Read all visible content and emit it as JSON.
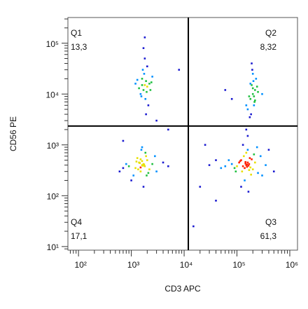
{
  "chart_data": {
    "type": "scatter",
    "x_label": "CD3 APC",
    "y_label": "CD56 PE",
    "log_x": true,
    "log_y": true,
    "xlim": [
      63,
      1400000
    ],
    "ylim": [
      8.5,
      320000
    ],
    "xticks": [
      {
        "value": 100,
        "label": "10²"
      },
      {
        "value": 1000,
        "label": "10³"
      },
      {
        "value": 10000,
        "label": "10⁴"
      },
      {
        "value": 100000,
        "label": "10⁵"
      },
      {
        "value": 1000000,
        "label": "10⁶"
      }
    ],
    "yticks": [
      {
        "value": 10,
        "label": "10¹"
      },
      {
        "value": 100,
        "label": "10²"
      },
      {
        "value": 1000,
        "label": "10³"
      },
      {
        "value": 10000,
        "label": "10⁴"
      },
      {
        "value": 100000,
        "label": "10⁵"
      }
    ],
    "minor_ticks": true,
    "gate_x": 12000,
    "gate_y": 2350,
    "density_colors": [
      "#1a1ad0",
      "#0090ff",
      "#20c040",
      "#e8e000",
      "#ff2000"
    ],
    "quadrants": {
      "names": [
        "Q1",
        "Q2",
        "Q3",
        "Q4"
      ],
      "values": [
        13.3,
        8.32,
        61.3,
        17.1
      ],
      "value_labels": [
        "13,3",
        "8,32",
        "61,3",
        "17,1"
      ]
    },
    "x": [
      1600,
      1400,
      1800,
      2000,
      1200,
      1500,
      1700,
      1900,
      2200,
      1300,
      1100,
      2500,
      900,
      3000,
      1600,
      1500,
      1750,
      1450,
      1650,
      1850,
      700,
      4000,
      1000,
      2800,
      1550,
      1350,
      2100,
      1250,
      1950,
      800,
      5000,
      1600,
      1700,
      1500,
      600,
      1800,
      1700,
      1900,
      2000,
      1600,
      1500,
      2200,
      1750,
      1850,
      1400,
      2400,
      1300,
      1950,
      1650,
      2100,
      1800,
      1700,
      2500,
      1550,
      1900,
      1800,
      2000,
      1600,
      2300,
      1200,
      150000,
      130000,
      170000,
      160000,
      140000,
      120000,
      180000,
      200000,
      110000,
      155000,
      145000,
      165000,
      125000,
      190000,
      135000,
      100000,
      220000,
      250000,
      90000,
      80000,
      300000,
      60000,
      150000,
      140000,
      160000,
      175000,
      115000,
      185000,
      70000,
      350000,
      130000,
      170000,
      145000,
      155000,
      95000,
      210000,
      50000,
      240000,
      120000,
      160000,
      40000,
      30000,
      280000,
      150000,
      165000,
      200000,
      180000,
      220000,
      190000,
      210000,
      170000,
      230000,
      160000,
      200000,
      250000,
      185000,
      215000,
      195000,
      60000,
      80000,
      175000,
      205000,
      240000,
      190000,
      210000,
      150000,
      300000,
      200000,
      180000,
      220000,
      20000,
      400000,
      5000,
      700,
      3000,
      15000,
      500000,
      8000,
      40000,
      25000
    ],
    "values": [
      400,
      450,
      380,
      500,
      350,
      300,
      420,
      600,
      330,
      550,
      250,
      420,
      380,
      300,
      480,
      360,
      410,
      440,
      390,
      700,
      350,
      450,
      200,
      600,
      800,
      330,
      280,
      470,
      250,
      420,
      380,
      900,
      150,
      520,
      300,
      15000,
      12000,
      18000,
      14000,
      20000,
      10000,
      16000,
      25000,
      8000,
      13000,
      17000,
      19000,
      11000,
      30000,
      6000,
      50000,
      80000,
      22000,
      9000,
      4000,
      130000,
      35000,
      15000,
      12000,
      16000,
      400,
      380,
      420,
      450,
      350,
      500,
      360,
      330,
      450,
      410,
      430,
      390,
      300,
      520,
      600,
      380,
      450,
      280,
      350,
      420,
      250,
      380,
      700,
      200,
      800,
      550,
      480,
      260,
      500,
      400,
      1000,
      320,
      460,
      370,
      300,
      650,
      350,
      900,
      150,
      1500,
      500,
      400,
      600,
      2000,
      120,
      10000,
      8000,
      12000,
      15000,
      6000,
      9000,
      20000,
      5000,
      25000,
      11000,
      4000,
      7000,
      30000,
      12000,
      8000,
      3500,
      18000,
      14000,
      40000,
      9000,
      6000,
      10000,
      13000,
      16000,
      7500,
      150,
      800,
      2000,
      1200,
      3000,
      25,
      300,
      30000,
      80,
      1000
    ]
  }
}
